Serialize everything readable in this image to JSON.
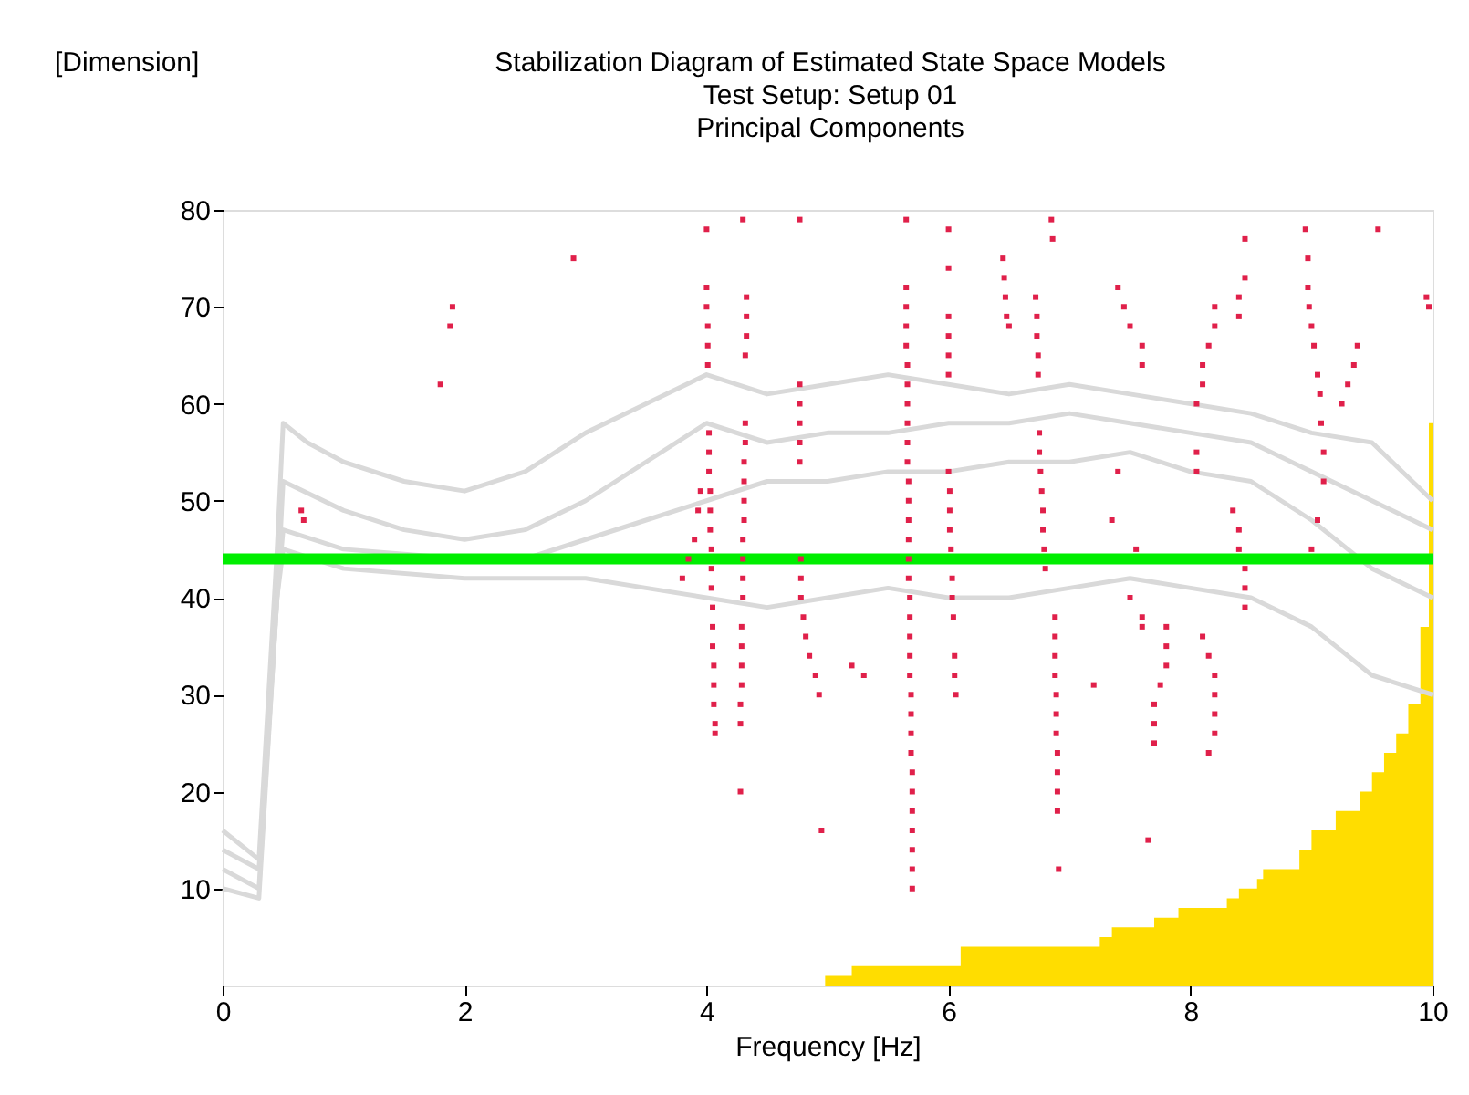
{
  "chart_data": {
    "type": "line",
    "title": "Stabilization Diagram of Estimated State Space Models",
    "subtitle": "Test Setup: Setup 01\nPrincipal Components",
    "xlabel": "Frequency [Hz]",
    "ylabel": "[Dimension]",
    "xlim": [
      0,
      10
    ],
    "ylim": [
      0,
      80
    ],
    "xticks": [
      0,
      2,
      4,
      6,
      8,
      10
    ],
    "yticks": [
      10,
      20,
      30,
      40,
      50,
      60,
      70,
      80
    ],
    "grid": false,
    "series": [
      {
        "type": "area",
        "color": "#ffdd00",
        "x": [
          4.98,
          5.2,
          6.1,
          7.25,
          7.35,
          7.7,
          7.9,
          8.3,
          8.4,
          8.55,
          8.6,
          8.9,
          9.0,
          9.2,
          9.4,
          9.5,
          9.6,
          9.7,
          9.8,
          9.9,
          9.97,
          10
        ],
        "values": [
          1,
          2,
          4,
          5,
          6,
          7,
          8,
          9,
          10,
          11,
          12,
          14,
          16,
          18,
          20,
          22,
          24,
          26,
          29,
          37,
          58,
          58
        ]
      },
      {
        "color": "#d9d9d9",
        "x": [
          0,
          0.3,
          0.45,
          0.5,
          0.7,
          1,
          1.5,
          2,
          2.5,
          3,
          3.5,
          4,
          4.5,
          5,
          5.5,
          6,
          6.5,
          7,
          7.5,
          8,
          8.5,
          9,
          9.5,
          10
        ],
        "values": [
          16,
          13,
          45,
          58,
          56,
          54,
          52,
          51,
          53,
          57,
          60,
          63,
          61,
          62,
          63,
          62,
          61,
          62,
          61,
          60,
          59,
          57,
          56,
          50
        ]
      },
      {
        "color": "#d9d9d9",
        "x": [
          0,
          0.3,
          0.45,
          0.5,
          1,
          1.5,
          2,
          2.5,
          3,
          3.5,
          4,
          4.5,
          5,
          5.5,
          6,
          6.5,
          7,
          7.5,
          8,
          8.5,
          9,
          9.5,
          10
        ],
        "values": [
          12,
          10,
          40,
          52,
          49,
          47,
          46,
          47,
          50,
          54,
          58,
          56,
          57,
          57,
          58,
          58,
          59,
          58,
          57,
          56,
          53,
          50,
          47
        ]
      },
      {
        "color": "#d9d9d9",
        "x": [
          0,
          0.3,
          0.45,
          0.5,
          1,
          2,
          2.5,
          3,
          3.5,
          4,
          4.5,
          5,
          5.5,
          6,
          6.5,
          7,
          7.5,
          8,
          8.5,
          9,
          9.5,
          10
        ],
        "values": [
          10,
          9,
          40,
          47,
          45,
          44,
          44,
          46,
          48,
          50,
          52,
          52,
          53,
          53,
          54,
          54,
          55,
          53,
          52,
          48,
          43,
          40
        ]
      },
      {
        "color": "#d9d9d9",
        "x": [
          0,
          0.3,
          0.45,
          0.5,
          1,
          2,
          3,
          3.5,
          4,
          4.5,
          5,
          5.5,
          6,
          6.5,
          7,
          7.5,
          8,
          8.5,
          9,
          9.5,
          10
        ],
        "values": [
          14,
          12,
          40,
          45,
          43,
          42,
          42,
          41,
          40,
          39,
          40,
          41,
          40,
          40,
          41,
          42,
          41,
          40,
          37,
          32,
          30
        ]
      },
      {
        "color": "#00ee00",
        "x": [
          0,
          10
        ],
        "values": [
          44,
          44
        ]
      },
      {
        "type": "scatter",
        "color": "#e0204a",
        "marker": "square",
        "x": [
          0.65,
          0.67,
          1.8,
          1.9,
          1.88,
          2.9,
          3.8,
          3.85,
          3.9,
          3.93,
          3.95,
          4.0,
          4.0,
          4.0,
          4.01,
          4.01,
          4.01,
          4.02,
          4.02,
          4.02,
          4.03,
          4.03,
          4.03,
          4.04,
          4.04,
          4.04,
          4.05,
          4.05,
          4.05,
          4.06,
          4.06,
          4.06,
          4.07,
          4.07,
          4.3,
          4.33,
          4.33,
          4.33,
          4.32,
          4.32,
          4.32,
          4.31,
          4.31,
          4.31,
          4.31,
          4.3,
          4.3,
          4.3,
          4.3,
          4.29,
          4.29,
          4.29,
          4.29,
          4.28,
          4.28,
          4.28,
          4.77,
          4.77,
          4.77,
          4.77,
          4.77,
          4.77,
          4.78,
          4.78,
          4.78,
          4.8,
          4.82,
          4.85,
          4.9,
          4.93,
          4.95,
          5.2,
          5.3,
          5.65,
          5.65,
          5.65,
          5.65,
          5.65,
          5.66,
          5.66,
          5.66,
          5.66,
          5.66,
          5.66,
          5.67,
          5.67,
          5.67,
          5.67,
          5.67,
          5.67,
          5.68,
          5.68,
          5.68,
          5.68,
          5.68,
          5.69,
          5.69,
          5.69,
          5.69,
          5.7,
          5.7,
          5.7,
          5.7,
          5.7,
          5.7,
          5.7,
          6.0,
          6.0,
          6.0,
          6.0,
          6.0,
          6.0,
          6.0,
          6.01,
          6.01,
          6.01,
          6.02,
          6.03,
          6.03,
          6.04,
          6.05,
          6.05,
          6.06,
          6.45,
          6.46,
          6.47,
          6.48,
          6.5,
          6.72,
          6.73,
          6.73,
          6.74,
          6.74,
          6.75,
          6.75,
          6.76,
          6.77,
          6.78,
          6.78,
          6.79,
          6.8,
          6.85,
          6.86,
          6.88,
          6.88,
          6.88,
          6.88,
          6.89,
          6.89,
          6.89,
          6.9,
          6.9,
          6.9,
          6.9,
          6.91,
          7.4,
          7.45,
          7.5,
          7.6,
          7.6,
          7.4,
          7.35,
          7.55,
          7.5,
          7.6,
          7.6,
          7.2,
          7.8,
          7.8,
          7.8,
          7.75,
          7.7,
          7.7,
          7.7,
          7.65,
          8.1,
          8.15,
          8.2,
          8.2,
          8.2,
          8.2,
          8.15,
          8.05,
          8.1,
          8.1,
          8.15,
          8.2,
          8.2,
          8.05,
          8.05,
          8.35,
          8.4,
          8.4,
          8.45,
          8.45,
          8.45,
          8.45,
          8.45,
          8.4,
          8.4,
          8.95,
          8.97,
          8.97,
          8.98,
          9.0,
          9.02,
          9.05,
          9.07,
          9.08,
          9.1,
          9.1,
          9.05,
          9.0,
          9.25,
          9.3,
          9.35,
          9.38,
          9.55,
          9.95,
          9.97
        ],
        "values": [
          49,
          48,
          62,
          70,
          68,
          75,
          42,
          44,
          46,
          49,
          51,
          78,
          72,
          70,
          68,
          66,
          64,
          57,
          55,
          53,
          51,
          49,
          47,
          45,
          43,
          41,
          39,
          37,
          35,
          33,
          31,
          29,
          27,
          26,
          79,
          71,
          69,
          67,
          65,
          58,
          56,
          54,
          52,
          50,
          48,
          46,
          44,
          42,
          40,
          37,
          35,
          33,
          31,
          29,
          27,
          20,
          79,
          62,
          60,
          58,
          56,
          54,
          44,
          42,
          40,
          38,
          36,
          34,
          32,
          30,
          16,
          33,
          32,
          79,
          72,
          70,
          68,
          66,
          64,
          62,
          60,
          58,
          56,
          54,
          52,
          50,
          48,
          46,
          44,
          42,
          40,
          38,
          36,
          34,
          32,
          30,
          28,
          26,
          24,
          22,
          20,
          18,
          16,
          14,
          12,
          10,
          78,
          74,
          69,
          67,
          65,
          63,
          53,
          51,
          49,
          47,
          45,
          42,
          40,
          38,
          34,
          32,
          30,
          75,
          73,
          71,
          69,
          68,
          71,
          69,
          67,
          65,
          63,
          57,
          55,
          53,
          51,
          49,
          47,
          45,
          43,
          79,
          77,
          38,
          36,
          34,
          32,
          30,
          28,
          26,
          24,
          22,
          20,
          18,
          12,
          72,
          70,
          68,
          66,
          64,
          53,
          48,
          45,
          40,
          38,
          37,
          31,
          37,
          35,
          33,
          31,
          29,
          27,
          25,
          15,
          36,
          34,
          32,
          30,
          28,
          26,
          24,
          60,
          62,
          64,
          66,
          68,
          70,
          55,
          53,
          49,
          47,
          45,
          43,
          41,
          39,
          77,
          73,
          71,
          69,
          78,
          75,
          72,
          70,
          68,
          66,
          63,
          61,
          58,
          55,
          52,
          48,
          45,
          60,
          62,
          64,
          66,
          78,
          71,
          70
        ]
      }
    ]
  }
}
